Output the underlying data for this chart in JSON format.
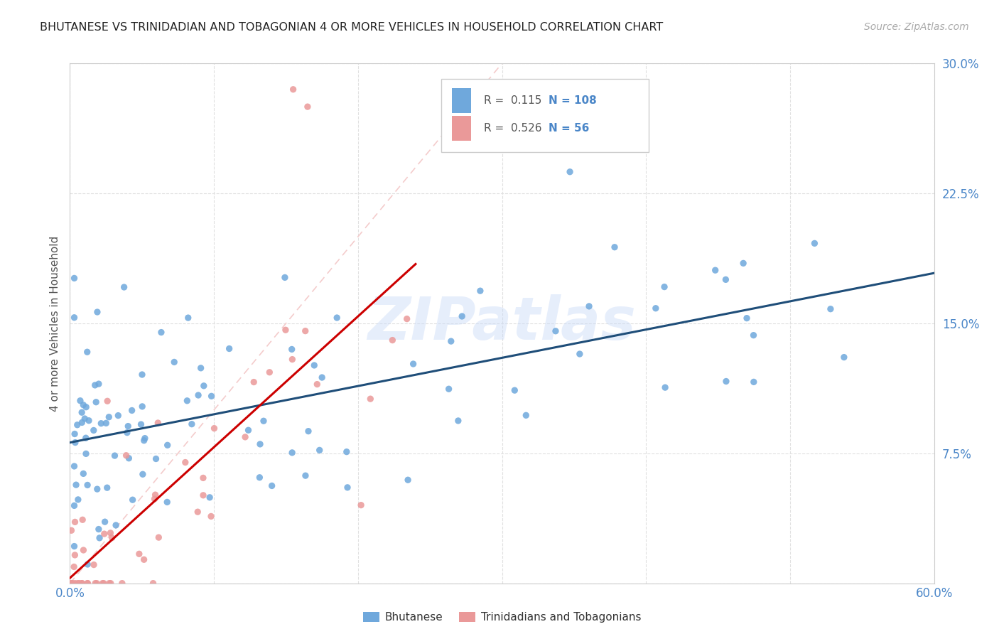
{
  "title": "BHUTANESE VS TRINIDADIAN AND TOBAGONIAN 4 OR MORE VEHICLES IN HOUSEHOLD CORRELATION CHART",
  "source": "Source: ZipAtlas.com",
  "ylabel": "4 or more Vehicles in Household",
  "xlim": [
    0.0,
    0.6
  ],
  "ylim": [
    0.0,
    0.3
  ],
  "xtick_positions": [
    0.0,
    0.1,
    0.2,
    0.3,
    0.4,
    0.5,
    0.6
  ],
  "xticklabels": [
    "0.0%",
    "",
    "",
    "",
    "",
    "",
    "60.0%"
  ],
  "ytick_positions": [
    0.0,
    0.075,
    0.15,
    0.225,
    0.3
  ],
  "yticklabels": [
    "",
    "7.5%",
    "15.0%",
    "22.5%",
    "30.0%"
  ],
  "blue_r": 0.115,
  "blue_n": 108,
  "pink_r": 0.526,
  "pink_n": 56,
  "blue_color": "#6fa8dc",
  "pink_color": "#ea9999",
  "blue_line_color": "#1f4e79",
  "pink_line_color": "#cc0000",
  "diagonal_color": "#f4cccc",
  "watermark": "ZIPatlas",
  "legend_label_blue": "Bhutanese",
  "legend_label_pink": "Trinidadians and Tobagonians"
}
